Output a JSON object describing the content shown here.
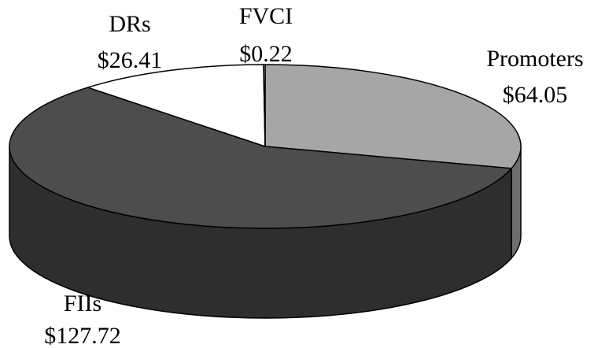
{
  "chart_data": {
    "type": "pie",
    "style": "3d",
    "categories": [
      "Promoters",
      "FIIs",
      "DRs",
      "FVCI"
    ],
    "values": [
      64.05,
      127.72,
      26.41,
      0.22
    ],
    "value_labels": [
      "$64.05",
      "$127.72",
      "$26.41",
      "$0.22"
    ],
    "colors": [
      "#a6a6a6",
      "#4d4d4d",
      "#ffffff",
      "#ffffff"
    ],
    "side_colors": [
      "#6e6e6e",
      "#2e2e2e",
      "#ffffff",
      "#ffffff"
    ],
    "outline_color": "#000000",
    "title": "",
    "legend": "none"
  }
}
